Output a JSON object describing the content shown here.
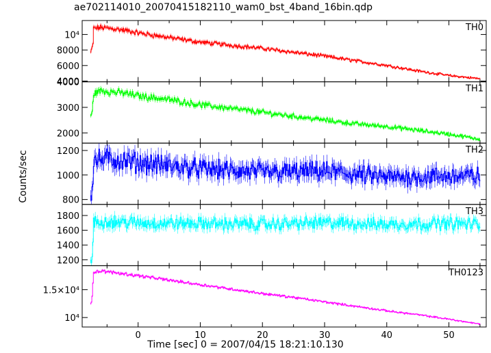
{
  "title": "ae702114010_20070415182110_wam0_bst_4band_16bin.qdp",
  "chart_data": {
    "type": "line",
    "title": "ae702114010_20070415182110_wam0_bst_4band_16bin.qdp",
    "xlabel": "Time [sec] 0 = 2007/04/15 18:21:10.130",
    "ylabel": "Counts/sec",
    "xlim": [
      -9,
      56
    ],
    "x_ticks": [
      0,
      10,
      20,
      30,
      40,
      50
    ],
    "x_tick_labels": [
      "0",
      "10",
      "20",
      "30",
      "40",
      "50"
    ],
    "grid": false,
    "panels": [
      {
        "name": "TH0",
        "color": "#ff0000",
        "ylim": [
          3900,
          11800
        ],
        "y_ticks": [
          4000,
          6000,
          8000,
          10000
        ],
        "y_tick_labels": [
          "4000",
          "6000",
          "8000",
          "10⁴"
        ],
        "x": [
          -7.7,
          -7.5,
          -7.3,
          -7.2,
          -6,
          -4,
          -2,
          0,
          5,
          10,
          15,
          20,
          25,
          30,
          35,
          40,
          45,
          50,
          55
        ],
        "values": [
          7700,
          8100,
          9000,
          10800,
          10900,
          10750,
          10500,
          10200,
          9600,
          9000,
          8600,
          8200,
          7700,
          7200,
          6600,
          6000,
          5300,
          4700,
          4300
        ],
        "noise": 0.025
      },
      {
        "name": "TH1",
        "color": "#00ff00",
        "ylim": [
          1600,
          4000
        ],
        "y_ticks": [
          2000,
          3000,
          4000
        ],
        "y_tick_labels": [
          "2000",
          "3000",
          "4000"
        ],
        "x": [
          -7.7,
          -7.5,
          -7.2,
          -6,
          -4,
          -2,
          0,
          5,
          10,
          15,
          20,
          25,
          30,
          35,
          40,
          45,
          50,
          55
        ],
        "values": [
          2700,
          2650,
          3550,
          3650,
          3600,
          3550,
          3450,
          3300,
          3100,
          2950,
          2800,
          2650,
          2500,
          2350,
          2250,
          2100,
          1950,
          1750
        ],
        "noise": 0.03
      },
      {
        "name": "TH2",
        "color": "#0000ff",
        "ylim": [
          760,
          1260
        ],
        "y_ticks": [
          800,
          1000,
          1200
        ],
        "y_tick_labels": [
          "800",
          "1000",
          "1200"
        ],
        "x": [
          -7.7,
          -7.5,
          -7.2,
          -5,
          0,
          10,
          20,
          30,
          40,
          50,
          55
        ],
        "values": [
          850,
          820,
          1120,
          1130,
          1100,
          1050,
          1020,
          1030,
          980,
          990,
          990
        ],
        "noise": 0.06
      },
      {
        "name": "TH3",
        "color": "#00ffff",
        "ylim": [
          1120,
          1950
        ],
        "y_ticks": [
          1200,
          1400,
          1600,
          1800
        ],
        "y_tick_labels": [
          "1200",
          "1400",
          "1600",
          "1800"
        ],
        "x": [
          -7.7,
          -7.5,
          -7.2,
          -5,
          0,
          10,
          20,
          30,
          40,
          50,
          55
        ],
        "values": [
          1180,
          1150,
          1700,
          1720,
          1700,
          1690,
          1680,
          1700,
          1680,
          1690,
          1680
        ],
        "noise": 0.04
      },
      {
        "name": "TH0123",
        "color": "#ff00ff",
        "ylim": [
          8300,
          19300
        ],
        "y_ticks": [
          10000,
          15000
        ],
        "y_tick_labels": [
          "10⁴",
          "1.5×10⁴"
        ],
        "x": [
          -7.7,
          -7.5,
          -7.2,
          -6,
          -4,
          0,
          5,
          10,
          15,
          20,
          25,
          30,
          35,
          40,
          45,
          50,
          55
        ],
        "values": [
          12600,
          13000,
          18200,
          18300,
          18100,
          17500,
          16700,
          15900,
          15100,
          14300,
          13600,
          12800,
          12000,
          11200,
          10500,
          9700,
          8800
        ],
        "noise": 0.012
      }
    ]
  }
}
